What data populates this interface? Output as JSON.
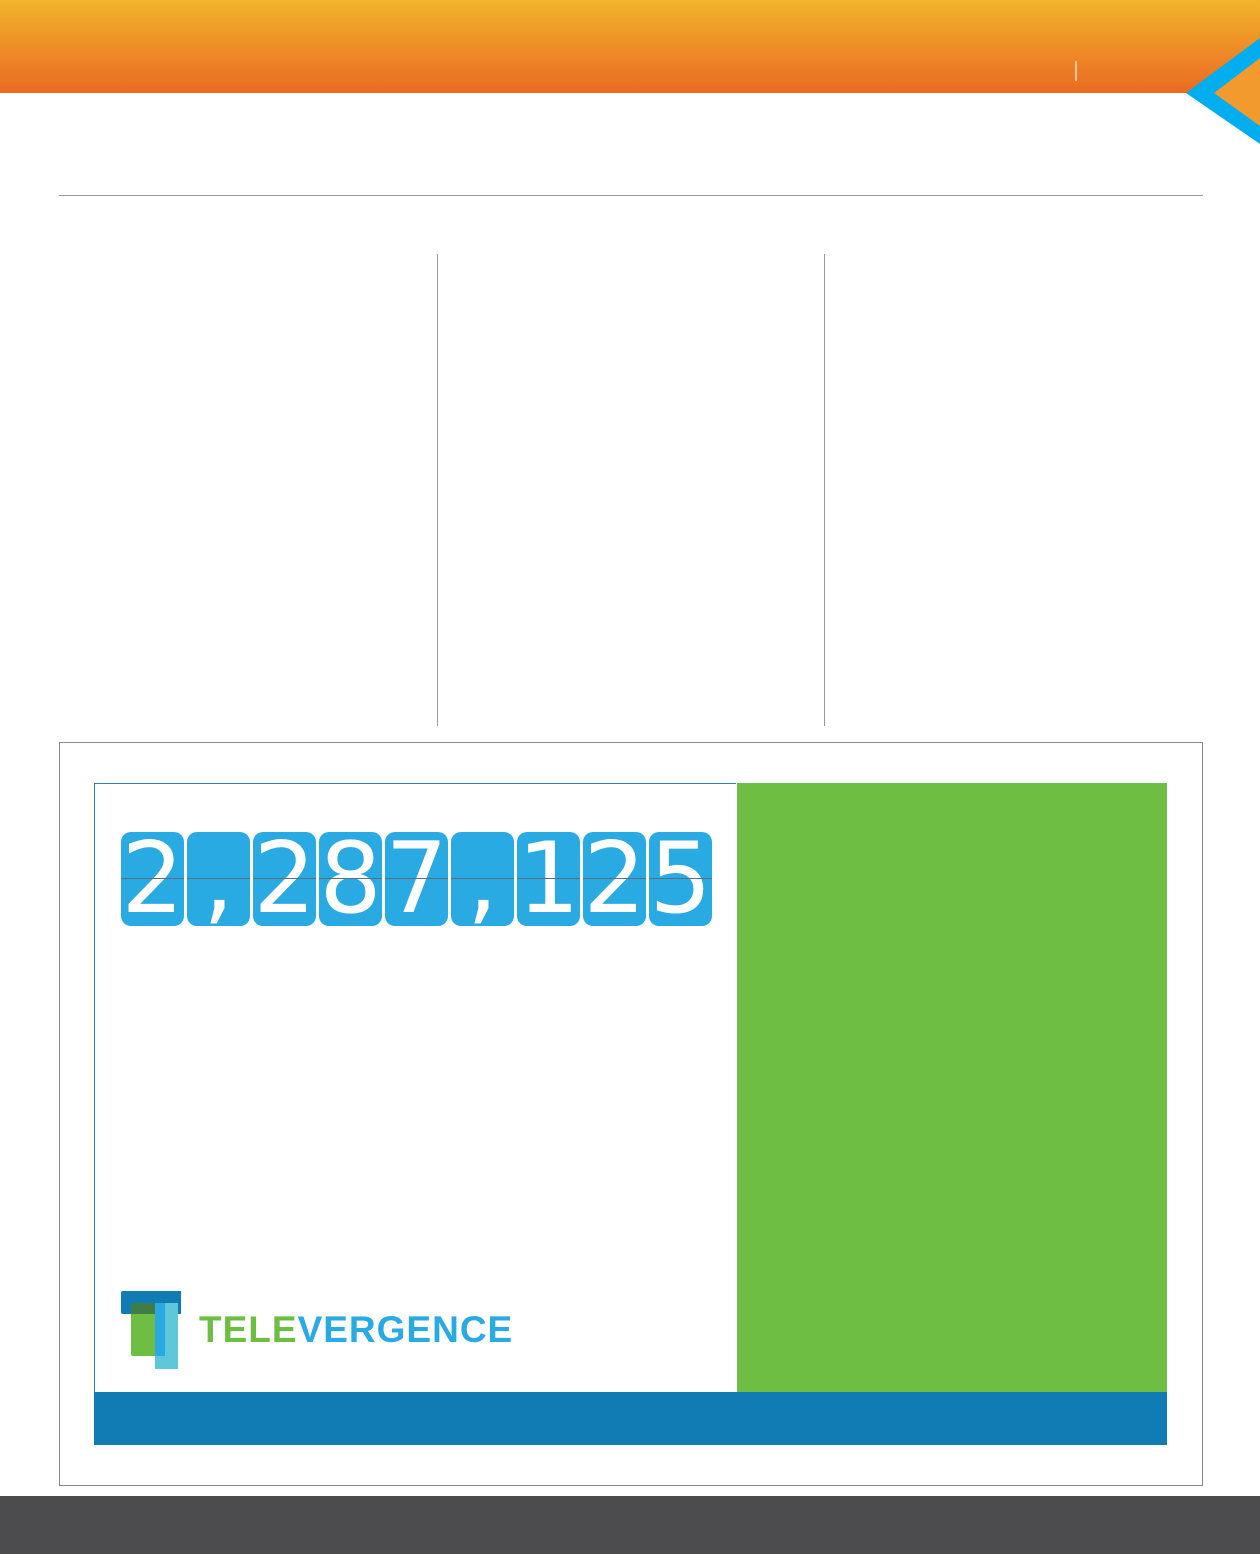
{
  "colors": {
    "header_top": "#f1b42c",
    "header_bottom": "#ea6a22",
    "chevron": "#00aeef",
    "ad_green": "#6fbe44",
    "ad_blue_bar": "#0f7db3",
    "counter_tile": "#29aae2",
    "footer": "#4c4c4e"
  },
  "ad": {
    "counter": {
      "value": "2,287,125",
      "tiles": [
        "2",
        ",",
        "2",
        "8",
        "7",
        ",",
        "1",
        "2",
        "5"
      ]
    },
    "logo": {
      "part1": "TELE",
      "part2": "VERGENCE",
      "part1_color": "#6fbe44",
      "part2_color": "#29aae2"
    }
  }
}
